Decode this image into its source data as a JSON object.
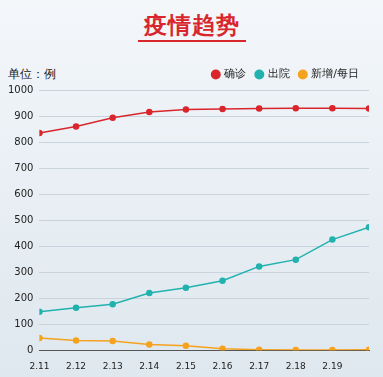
{
  "chart_data": {
    "type": "line",
    "title": "疫情趋势",
    "ylabel": "单位：例",
    "categories": [
      "2.11",
      "2.12",
      "2.13",
      "2.14",
      "2.15",
      "2.16",
      "2.17",
      "2.18",
      "2.19",
      null
    ],
    "series": [
      {
        "name": "确诊",
        "color": "#d9262c",
        "values": [
          835,
          860,
          893,
          915,
          925,
          927,
          929,
          930,
          930,
          929
        ]
      },
      {
        "name": "出院",
        "color": "#22b2ae",
        "values": [
          148,
          163,
          177,
          220,
          240,
          267,
          322,
          348,
          425,
          473
        ]
      },
      {
        "name": "新增/每日",
        "color": "#f5a21e",
        "values": [
          47,
          37,
          35,
          22,
          17,
          6,
          2,
          1,
          1,
          2
        ]
      }
    ],
    "ylim": [
      0,
      1000
    ],
    "yticks": [
      0,
      100,
      200,
      300,
      400,
      500,
      600,
      700,
      800,
      900,
      1000
    ],
    "grid": true,
    "legend": "upper right",
    "marker": "o"
  }
}
